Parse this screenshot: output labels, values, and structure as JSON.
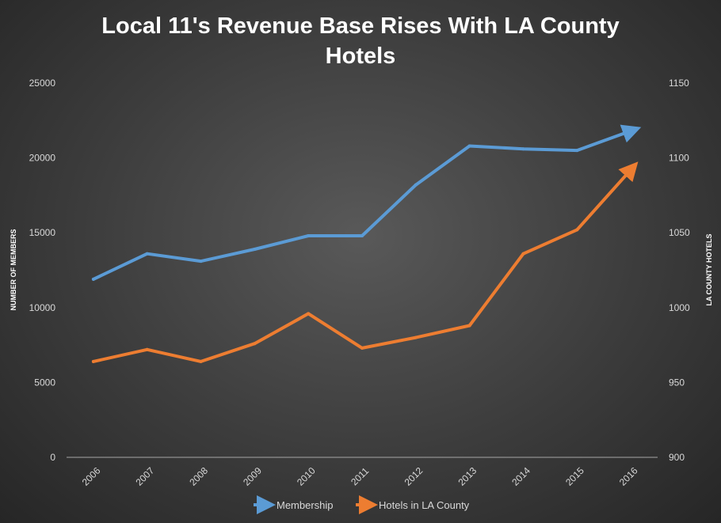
{
  "chart_data": {
    "type": "line",
    "title_lines": [
      "Local 11's Revenue Base Rises With LA County",
      "Hotels"
    ],
    "ylabel_left": "NUMBER OF MEMBERS",
    "ylabel_right": "LA COUNTY HOTELS",
    "x": [
      "2006",
      "2007",
      "2008",
      "2009",
      "2010",
      "2011",
      "2012",
      "2013",
      "2014",
      "2015",
      "2016"
    ],
    "ylim_left": [
      0,
      25000
    ],
    "ylim_right": [
      900,
      1150
    ],
    "yticks_left": [
      "25000",
      "20000",
      "15000",
      "10000",
      "5000",
      "0"
    ],
    "yticks_right": [
      "1150",
      "1100",
      "1050",
      "1000",
      "950",
      "900"
    ],
    "series": [
      {
        "name": "Membership",
        "axis": "left",
        "color": "#5b9bd5",
        "values": [
          11900,
          13600,
          13100,
          13900,
          14800,
          14800,
          18200,
          20800,
          20600,
          20500,
          21800
        ]
      },
      {
        "name": "Hotels in LA County",
        "axis": "right",
        "color": "#ed7d31",
        "values": [
          964,
          972,
          964,
          976,
          996,
          973,
          980,
          988,
          1036,
          1052,
          1092
        ]
      }
    ],
    "grid": false,
    "legend_position": "bottom"
  }
}
